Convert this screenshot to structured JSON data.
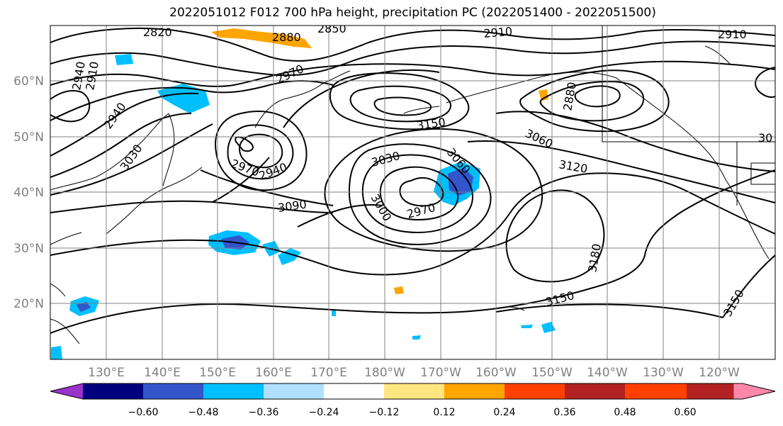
{
  "title": "2022051012 F012 700 hPa height, precipitation PC (2022051400 - 2022051500)",
  "map": {
    "lat_labels": [
      "60°N",
      "50°N",
      "40°N",
      "30°N",
      "20°N"
    ],
    "lon_labels": [
      "130°E",
      "140°E",
      "150°E",
      "160°E",
      "170°E",
      "180°W",
      "170°W",
      "160°W",
      "150°W",
      "140°W",
      "130°W",
      "120°W"
    ],
    "contour_labels": [
      "2820",
      "2880",
      "2850",
      "2910",
      "2910",
      "2940",
      "2910",
      "2970",
      "2940",
      "3030",
      "2970",
      "2940",
      "3150",
      "3060",
      "3120",
      "2880",
      "3030",
      "3060",
      "3090",
      "3000",
      "2970",
      "3180",
      "3150",
      "3150",
      "30"
    ],
    "line_color": "#000000",
    "grid_color": "#808080"
  },
  "colorbar": {
    "ticks": [
      "−0.60",
      "−0.48",
      "−0.36",
      "−0.24",
      "−0.12",
      "0.12",
      "0.24",
      "0.36",
      "0.48",
      "0.60"
    ],
    "colors": [
      "#9933cc",
      "#00007f",
      "#3355cc",
      "#00bfff",
      "#b0e0ff",
      "#ffffff",
      "#ffe680",
      "#ffa500",
      "#ff4000",
      "#b22222",
      "#ff88aa"
    ],
    "extend": "both"
  }
}
